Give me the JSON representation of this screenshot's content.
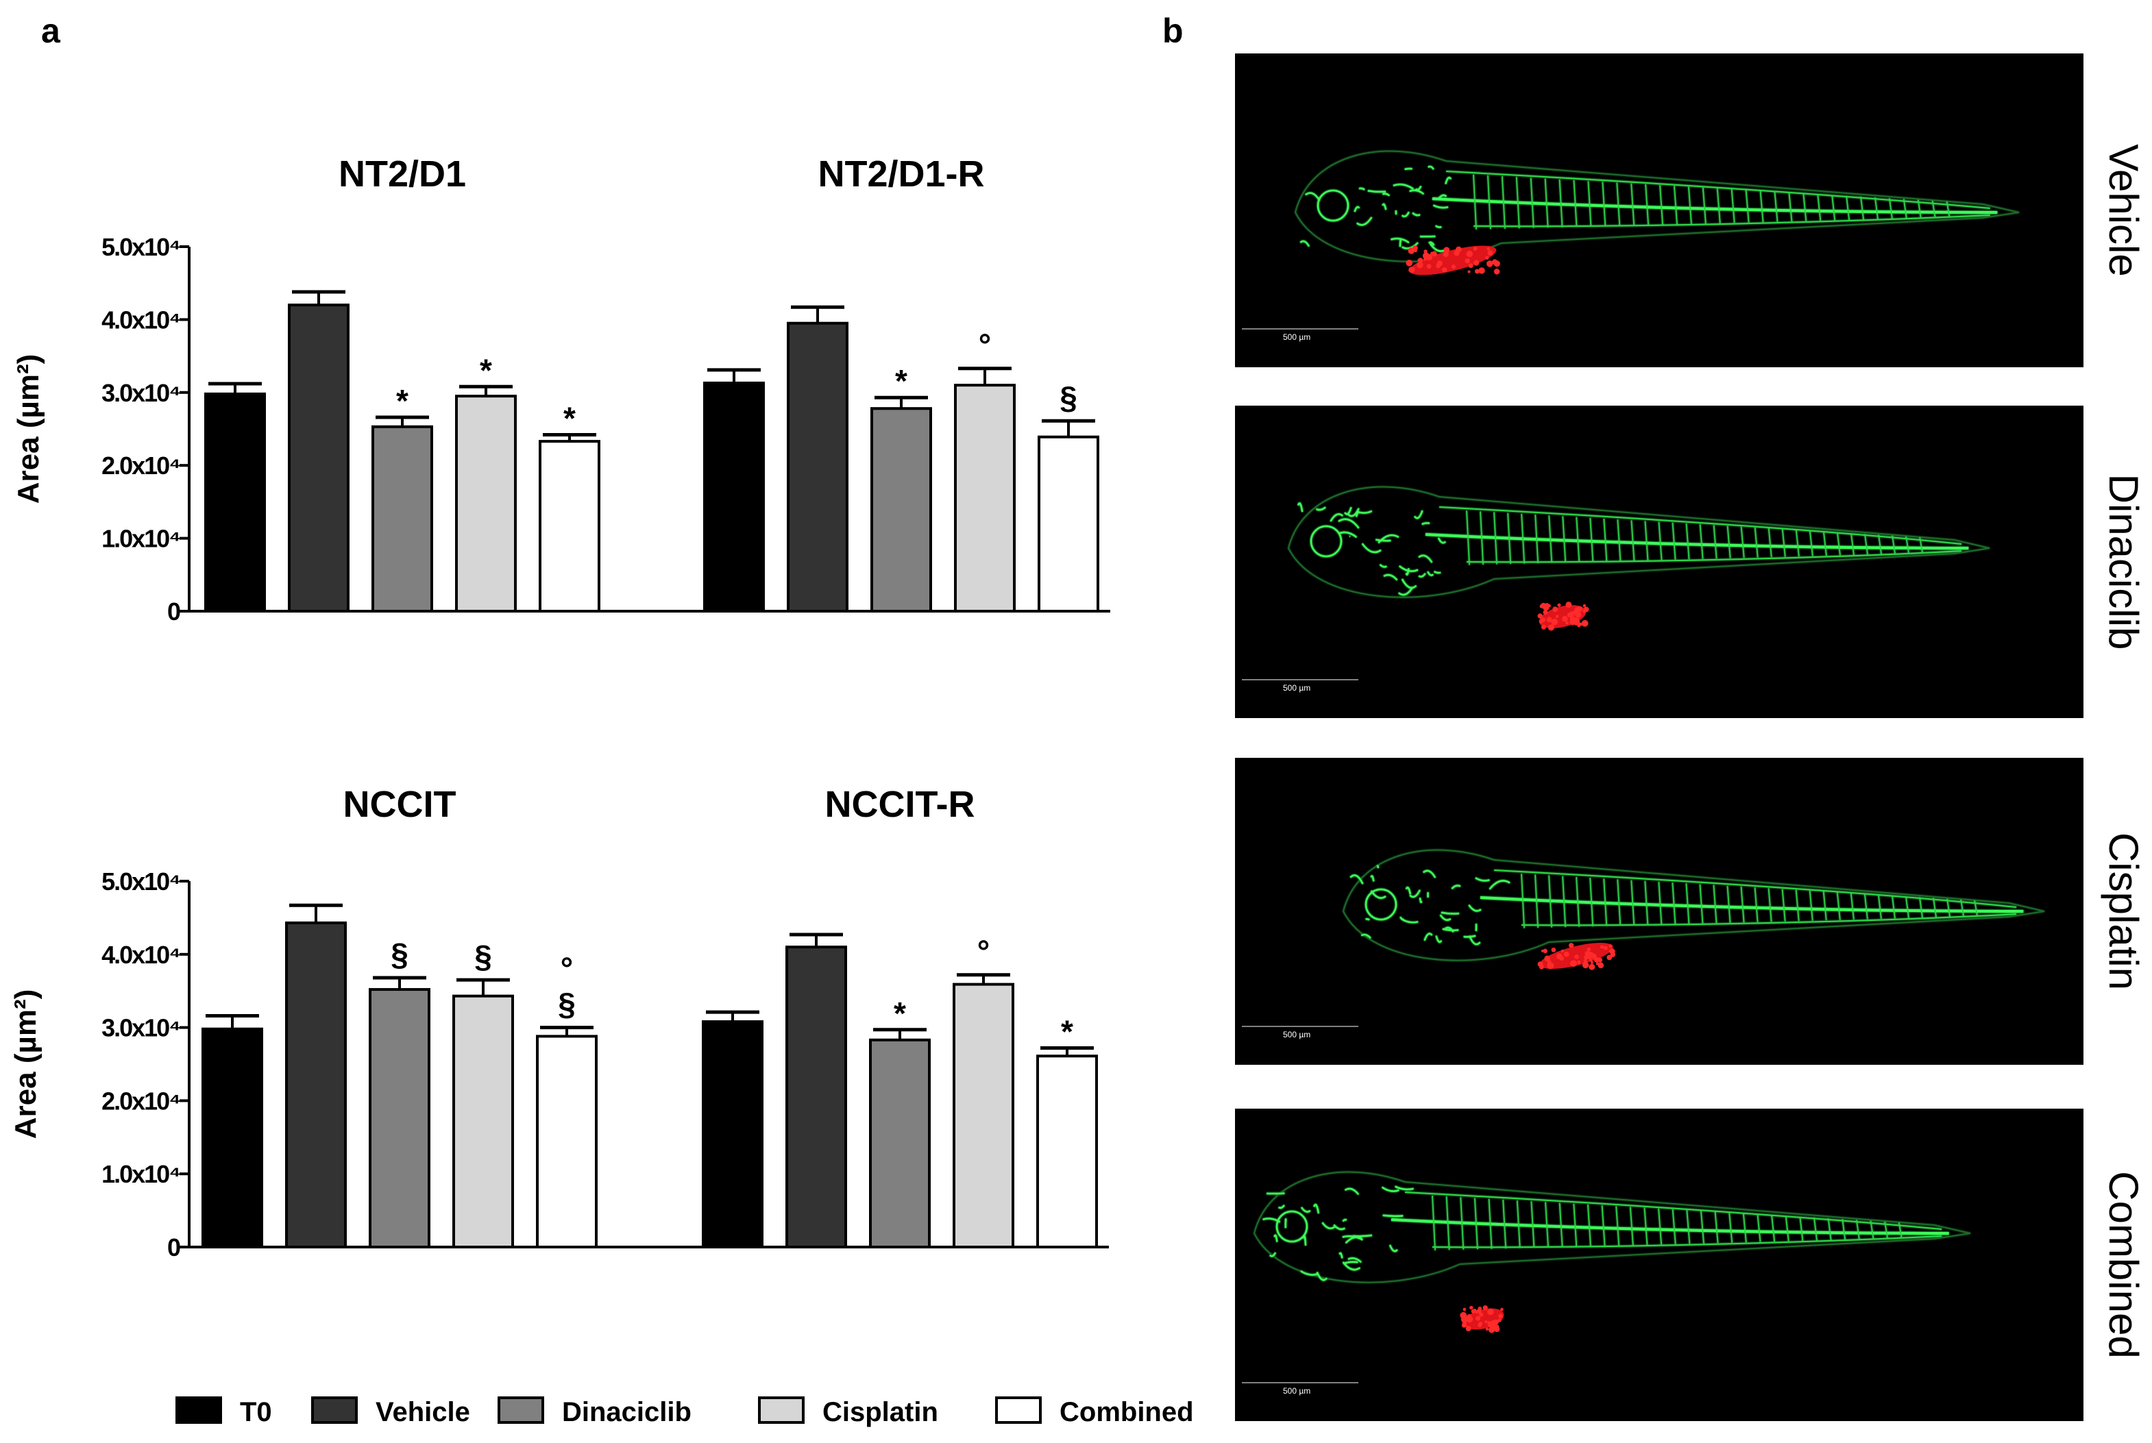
{
  "panels": {
    "a_label": "a",
    "b_label": "b"
  },
  "legend": [
    {
      "name": "T0",
      "color": "#000000"
    },
    {
      "name": "Vehicle",
      "color": "#333333"
    },
    {
      "name": "Dinaciclib",
      "color": "#808080"
    },
    {
      "name": "Cisplatin",
      "color": "#d6d6d6"
    },
    {
      "name": "Combined",
      "color": "#ffffff"
    }
  ],
  "chart_data": [
    {
      "type": "bar",
      "ylabel": "Area (µm²)",
      "ylim": [
        0,
        50000
      ],
      "yticks": [
        "0",
        "1.0x10⁴",
        "2.0x10⁴",
        "3.0x10⁴",
        "4.0x10⁴",
        "5.0x10⁴"
      ],
      "series_names": [
        "T0",
        "Vehicle",
        "Dinaciclib",
        "Cisplatin",
        "Combined"
      ],
      "groups": [
        {
          "title": "NT2/D1",
          "values": [
            29800,
            42000,
            25300,
            29500,
            23300
          ],
          "errors": [
            1400,
            1800,
            1300,
            1300,
            900
          ],
          "annotations": [
            "",
            "",
            "*",
            "*",
            "*"
          ]
        },
        {
          "title": "NT2/D1-R",
          "values": [
            31300,
            39500,
            27800,
            31000,
            23900
          ],
          "errors": [
            1800,
            2200,
            1500,
            2300,
            2200
          ],
          "annotations": [
            "",
            "",
            "*",
            "°",
            "§"
          ]
        }
      ]
    },
    {
      "type": "bar",
      "ylabel": "Area (µm²)",
      "ylim": [
        0,
        50000
      ],
      "yticks": [
        "0",
        "1.0x10⁴",
        "2.0x10⁴",
        "3.0x10⁴",
        "4.0x10⁴",
        "5.0x10⁴"
      ],
      "series_names": [
        "T0",
        "Vehicle",
        "Dinaciclib",
        "Cisplatin",
        "Combined"
      ],
      "groups": [
        {
          "title": "NCCIT",
          "values": [
            29800,
            44300,
            35200,
            34300,
            28800
          ],
          "errors": [
            1800,
            2400,
            1600,
            2200,
            1200
          ],
          "annotations": [
            "",
            "",
            "§",
            "§",
            "°\n§"
          ]
        },
        {
          "title": "NCCIT-R",
          "values": [
            30800,
            41000,
            28300,
            35900,
            26100
          ],
          "errors": [
            1300,
            1700,
            1400,
            1300,
            1100
          ],
          "annotations": [
            "",
            "",
            "*",
            "°",
            "*"
          ]
        }
      ]
    }
  ],
  "images": [
    {
      "label": "Vehicle",
      "scale": "500 µm"
    },
    {
      "label": "Dinaciclib",
      "scale": "500 µm"
    },
    {
      "label": "Cisplatin",
      "scale": "500 µm"
    },
    {
      "label": "Combined",
      "scale": "500 µm"
    }
  ]
}
